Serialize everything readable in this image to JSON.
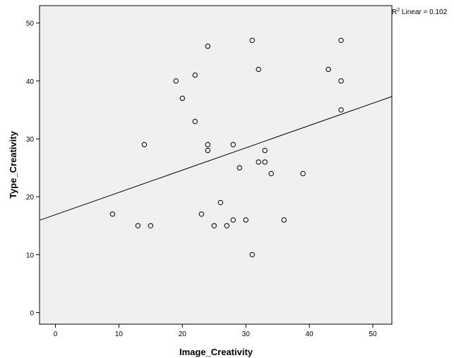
{
  "chart_data": {
    "type": "scatter",
    "title": "",
    "xlabel": "Image_Creativity",
    "ylabel": "Type_Creativity",
    "xlim": [
      -2.5,
      53
    ],
    "ylim": [
      -2,
      53
    ],
    "x_ticks": [
      0,
      10,
      20,
      30,
      40,
      50
    ],
    "y_ticks": [
      0,
      10,
      20,
      30,
      40,
      50
    ],
    "grid": false,
    "points": [
      {
        "x": 9,
        "y": 17
      },
      {
        "x": 13,
        "y": 15
      },
      {
        "x": 14,
        "y": 29
      },
      {
        "x": 15,
        "y": 15
      },
      {
        "x": 19,
        "y": 40
      },
      {
        "x": 20,
        "y": 37
      },
      {
        "x": 22,
        "y": 41
      },
      {
        "x": 22,
        "y": 33
      },
      {
        "x": 23,
        "y": 17
      },
      {
        "x": 24,
        "y": 46
      },
      {
        "x": 24,
        "y": 29
      },
      {
        "x": 24,
        "y": 28
      },
      {
        "x": 25,
        "y": 15
      },
      {
        "x": 26,
        "y": 19
      },
      {
        "x": 27,
        "y": 15
      },
      {
        "x": 28,
        "y": 16
      },
      {
        "x": 28,
        "y": 29
      },
      {
        "x": 29,
        "y": 25
      },
      {
        "x": 30,
        "y": 16
      },
      {
        "x": 31,
        "y": 47
      },
      {
        "x": 31,
        "y": 10
      },
      {
        "x": 32,
        "y": 42
      },
      {
        "x": 32,
        "y": 26
      },
      {
        "x": 33,
        "y": 28
      },
      {
        "x": 33,
        "y": 26
      },
      {
        "x": 34,
        "y": 24
      },
      {
        "x": 36,
        "y": 16
      },
      {
        "x": 39,
        "y": 24
      },
      {
        "x": 43,
        "y": 42
      },
      {
        "x": 45,
        "y": 47
      },
      {
        "x": 45,
        "y": 40
      },
      {
        "x": 45,
        "y": 35
      }
    ],
    "fit_line": {
      "intercept": 16.9,
      "slope": 0.385
    },
    "annotation": {
      "prefix": "R",
      "superscript": "2",
      "text": " Linear = 0.102"
    },
    "colors": {
      "plot_background": "#f0f0f0",
      "marker_stroke": "#000000",
      "line": "#000000"
    }
  }
}
